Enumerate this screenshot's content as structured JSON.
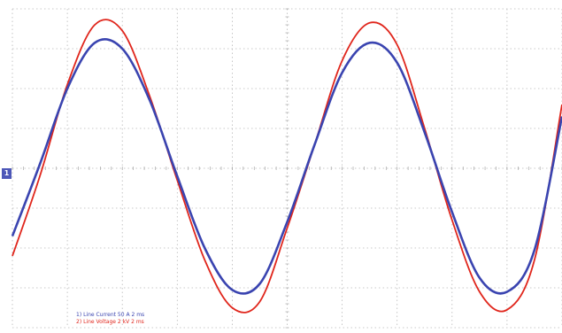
{
  "chart_data": {
    "type": "line",
    "title": "",
    "xlabel": "",
    "ylabel": "",
    "grid": true,
    "x_divisions": 10,
    "y_divisions": 8,
    "xlim": [
      0,
      10
    ],
    "ylim": [
      -4,
      4
    ],
    "channel_marker": "1",
    "legend": [
      {
        "channel": "1",
        "text": "1) Line Current 50 A  2 ms",
        "color": "#3a44b0"
      },
      {
        "channel": "2",
        "text": "2) Line Voltage 2 kV  2 ms",
        "color": "#e0261c"
      }
    ],
    "series": [
      {
        "name": "Line Current",
        "color": "#3a44b0",
        "x": [
          0.0,
          0.5,
          1.0,
          1.5,
          2.0,
          2.5,
          3.0,
          3.5,
          4.0,
          4.5,
          5.0,
          5.5,
          6.0,
          6.5,
          7.0,
          7.5,
          8.0,
          8.5,
          9.0,
          9.5,
          10.0
        ],
        "y": [
          -1.7,
          0.1,
          2.0,
          3.15,
          3.0,
          1.7,
          -0.2,
          -2.0,
          -3.05,
          -2.9,
          -1.35,
          0.6,
          2.4,
          3.15,
          2.65,
          0.9,
          -1.1,
          -2.75,
          -3.1,
          -2.05,
          1.3
        ]
      },
      {
        "name": "Line Voltage",
        "color": "#e0261c",
        "x": [
          0.0,
          0.5,
          1.0,
          1.5,
          2.0,
          2.5,
          3.0,
          3.5,
          4.0,
          4.5,
          5.0,
          5.5,
          6.0,
          6.5,
          7.0,
          7.5,
          8.0,
          8.5,
          9.0,
          9.5,
          10.0
        ],
        "y": [
          -2.2,
          -0.2,
          2.1,
          3.6,
          3.45,
          1.8,
          -0.3,
          -2.3,
          -3.5,
          -3.35,
          -1.5,
          0.6,
          2.7,
          3.65,
          3.1,
          1.0,
          -1.3,
          -3.1,
          -3.55,
          -2.3,
          1.6
        ]
      }
    ]
  }
}
